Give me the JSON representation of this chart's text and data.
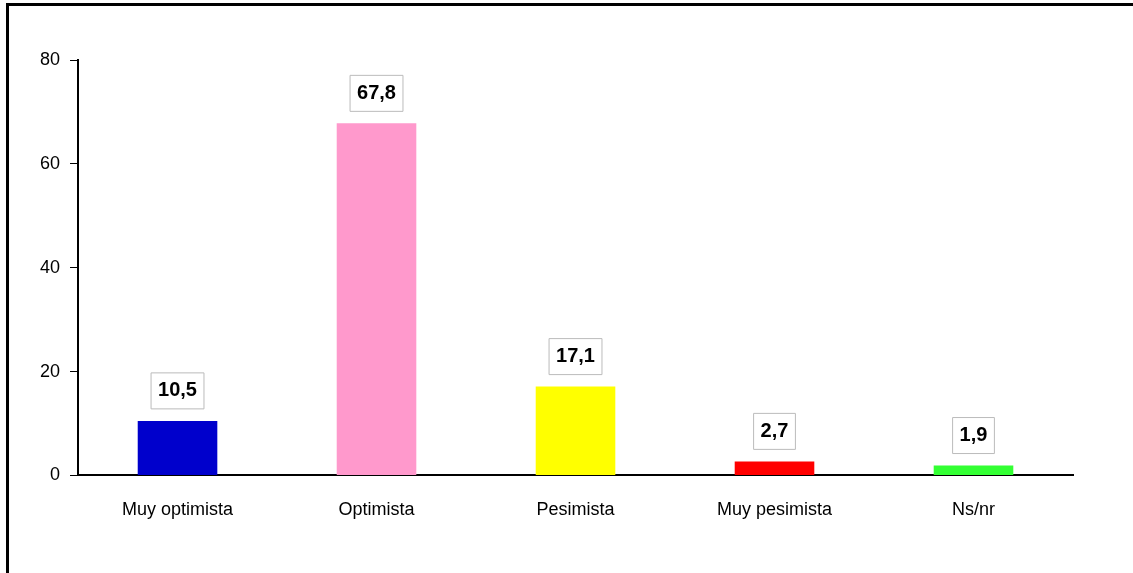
{
  "chart_data": {
    "type": "bar",
    "categories": [
      "Muy optimista",
      "Optimista",
      "Pesimista",
      "Muy pesimista",
      "Ns/nr"
    ],
    "values": [
      10.5,
      67.8,
      17.1,
      2.7,
      1.9
    ],
    "colors": [
      "#0000cc",
      "#ff99cc",
      "#ffff00",
      "#ff0000",
      "#33ff33"
    ],
    "value_labels": [
      "10,5",
      "67,8",
      "17,1",
      "2,7",
      "1,9"
    ],
    "ylim": [
      0,
      80
    ],
    "yticks": [
      0,
      20,
      40,
      60,
      80
    ],
    "grid": false,
    "legend": false
  }
}
